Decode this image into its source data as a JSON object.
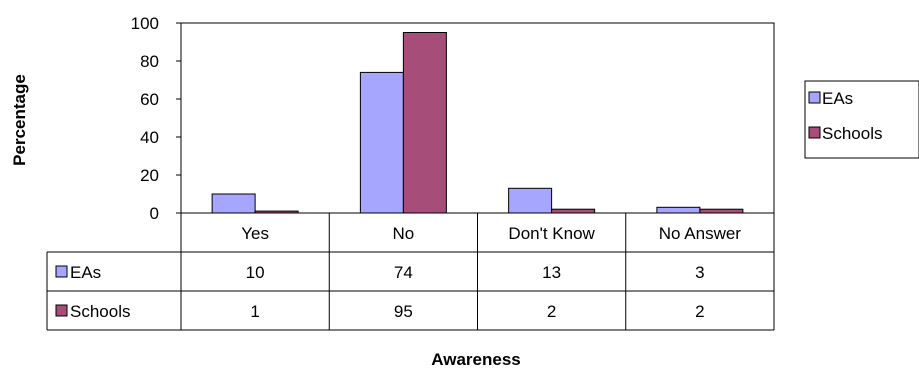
{
  "chart_data": {
    "type": "bar",
    "categories": [
      "Yes",
      "No",
      "Don't Know",
      "No Answer"
    ],
    "series": [
      {
        "name": "EAs",
        "values": [
          10,
          74,
          13,
          3
        ]
      },
      {
        "name": "Schools",
        "values": [
          1,
          95,
          2,
          2
        ]
      }
    ],
    "xlabel": "Awareness",
    "ylabel": "Percentage",
    "ylim": [
      0,
      100
    ],
    "yticks": [
      0,
      20,
      40,
      60,
      80,
      100
    ],
    "grid": false,
    "legend": "right",
    "data_table": true,
    "colors": {
      "EAs": "#a6a6ff",
      "Schools": "#a64d79"
    }
  }
}
